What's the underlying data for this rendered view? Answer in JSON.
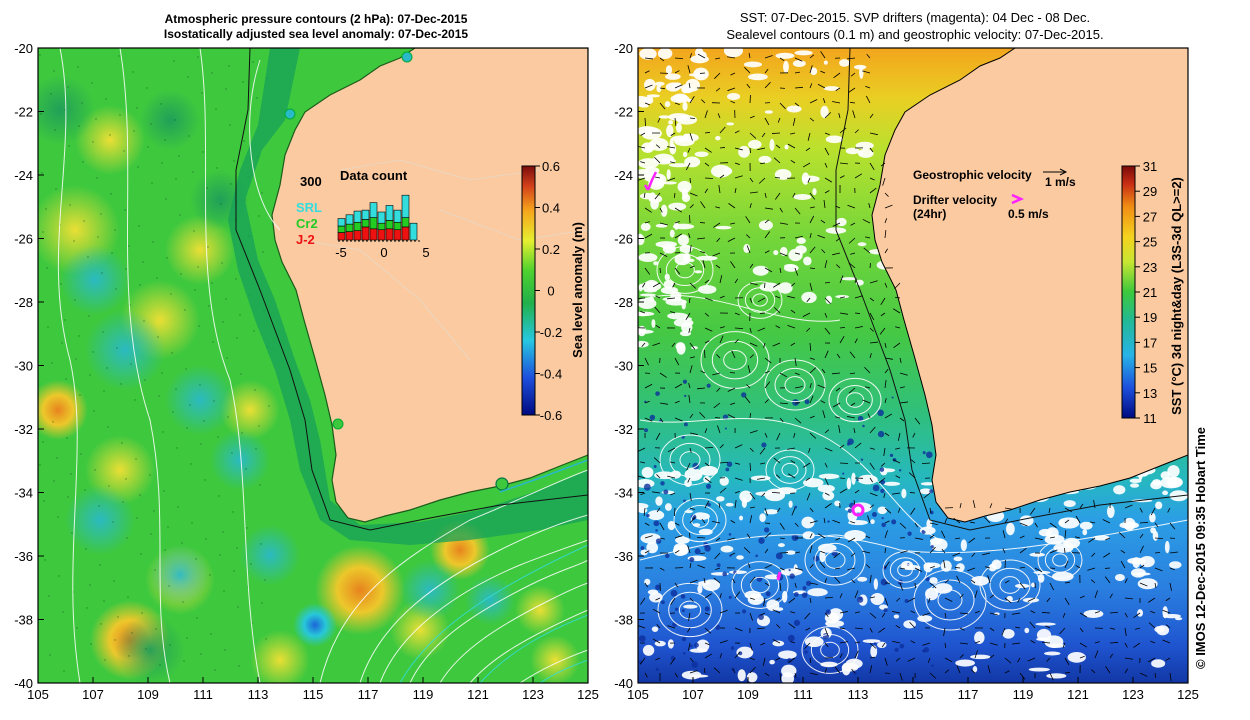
{
  "left_panel": {
    "title_line1": "Atmospheric pressure contours (2 hPa): 07-Dec-2015",
    "title_line2": "Isostatically adjusted sea level anomaly: 07-Dec-2015",
    "colorbar": {
      "label": "Sea level anomaly (m)",
      "ticks": [
        "0.6",
        "0.4",
        "0.2",
        "0",
        "-0.2",
        "-0.4",
        "-0.6"
      ]
    },
    "inset": {
      "title": "Data count",
      "y_max_label": "300",
      "x_ticks": [
        "-5",
        "0",
        "5"
      ],
      "series": [
        {
          "name": "SRL",
          "color": "#33dddd"
        },
        {
          "name": "Cr2",
          "color": "#22cc22"
        },
        {
          "name": "J-2",
          "color": "#ee1111"
        }
      ],
      "chart_data": {
        "type": "bar",
        "x": [
          -5,
          -4,
          -3,
          -2,
          -1,
          0,
          1,
          2,
          3,
          4
        ],
        "series": [
          {
            "name": "J-2",
            "values": [
              40,
              45,
              50,
              70,
              60,
              55,
              60,
              55,
              70,
              0
            ]
          },
          {
            "name": "Cr2",
            "values": [
              35,
              40,
              45,
              40,
              60,
              35,
              45,
              40,
              50,
              0
            ]
          },
          {
            "name": "SRL",
            "values": [
              40,
              50,
              60,
              50,
              80,
              60,
              80,
              65,
              120,
              90
            ]
          }
        ],
        "xlim": [
          -5,
          5
        ]
      }
    }
  },
  "right_panel": {
    "title_line1": "SST: 07-Dec-2015. SVP drifters (magenta): 04 Dec - 08 Dec.",
    "title_line2": "Sealevel contours (0.1 m) and geostrophic velocity: 07-Dec-2015.",
    "colorbar": {
      "label": "SST (°C) 3d night&day (L3S-3d QL>=2)",
      "ticks": [
        "31",
        "29",
        "27",
        "25",
        "23",
        "21",
        "19",
        "17",
        "15",
        "13",
        "11"
      ]
    },
    "legend": {
      "geo_label": "Geostrophic velocity",
      "geo_scale": "1 m/s",
      "drifter_label_1": "Drifter velocity",
      "drifter_label_2": "(24hr)",
      "drifter_scale": "0.5 m/s"
    }
  },
  "axes": {
    "y_ticks": [
      "-20",
      "-22",
      "-24",
      "-26",
      "-28",
      "-30",
      "-32",
      "-34",
      "-36",
      "-38",
      "-40"
    ],
    "x_ticks": [
      "105",
      "107",
      "109",
      "111",
      "113",
      "115",
      "117",
      "119",
      "121",
      "123",
      "125"
    ],
    "lon_range": [
      105,
      125
    ],
    "lat_range": [
      -40,
      -20
    ]
  },
  "credit": "© IMOS 12-Dec-2015 09:35 Hobart Time",
  "colors": {
    "land": "#fbcaa0",
    "ocean_base": "#3ec83e",
    "magenta": "#ff22ff",
    "cyan": "#22dddd"
  }
}
